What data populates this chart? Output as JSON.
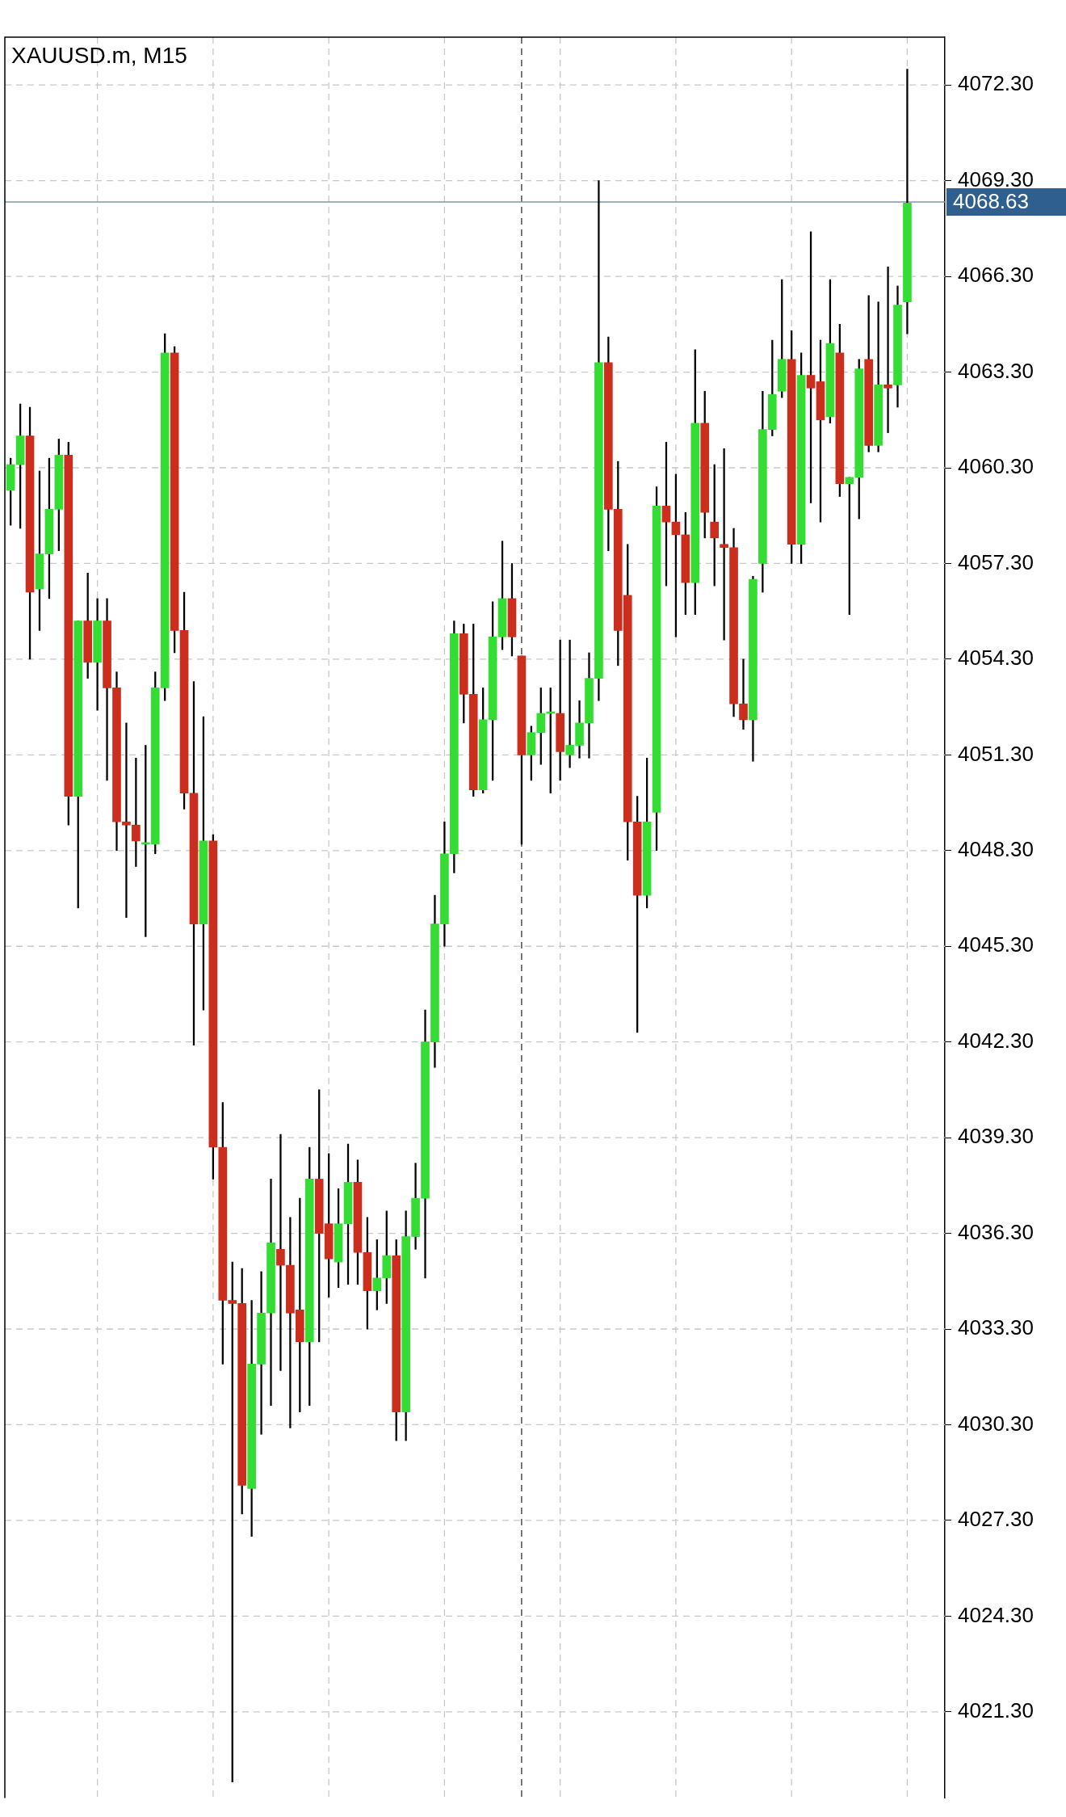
{
  "chart_data": {
    "type": "candlestick",
    "title": "XAUUSD.m, M15",
    "categories": [
      null,
      null,
      null,
      null,
      null,
      null,
      null,
      null,
      null,
      null,
      null,
      null,
      null,
      null,
      null,
      null,
      null,
      null,
      null,
      null,
      null,
      null,
      null,
      null,
      null,
      null,
      null,
      null,
      null,
      null,
      null,
      null,
      null,
      null,
      null,
      null,
      null,
      null,
      null,
      null,
      null,
      null,
      null,
      null,
      null,
      null,
      null,
      null,
      null,
      null,
      null,
      null,
      null,
      null,
      null,
      null,
      null,
      null,
      null,
      null,
      null,
      null,
      null,
      null,
      null,
      null,
      null,
      null,
      null,
      null,
      null,
      null,
      null,
      null,
      null,
      null,
      null,
      null,
      null,
      null,
      null,
      null,
      null,
      null,
      null,
      null,
      null,
      null,
      null,
      null,
      null,
      null,
      null,
      null
    ],
    "ohlc": [
      [
        4059.6,
        4060.6,
        4058.5,
        4060.4
      ],
      [
        4060.4,
        4062.3,
        4058.4,
        4061.3
      ],
      [
        4061.3,
        4062.2,
        4054.3,
        4056.4
      ],
      [
        4056.5,
        4060.2,
        4055.2,
        4057.6
      ],
      [
        4057.6,
        4060.6,
        4056.2,
        4059.0
      ],
      [
        4059.0,
        4061.2,
        4057.7,
        4060.7
      ],
      [
        4060.7,
        4061.1,
        4049.1,
        4050.0
      ],
      [
        4050.0,
        4055.5,
        4046.5,
        4055.5
      ],
      [
        4055.5,
        4057.0,
        4053.7,
        4054.2
      ],
      [
        4054.2,
        4056.2,
        4052.7,
        4055.5
      ],
      [
        4055.5,
        4056.2,
        4050.5,
        4053.4
      ],
      [
        4053.4,
        4053.9,
        4048.3,
        4049.2
      ],
      [
        4049.2,
        4052.3,
        4046.2,
        4049.1
      ],
      [
        4049.1,
        4051.2,
        4047.8,
        4048.6
      ],
      [
        4048.5,
        4051.6,
        4045.6,
        4048.5
      ],
      [
        4048.5,
        4053.9,
        4048.2,
        4053.4
      ],
      [
        4053.4,
        4064.5,
        4053.0,
        4063.9
      ],
      [
        4063.9,
        4064.1,
        4054.5,
        4055.2
      ],
      [
        4055.2,
        4056.4,
        4049.6,
        4050.1
      ],
      [
        4050.1,
        4053.6,
        4042.2,
        4046.0
      ],
      [
        4046.0,
        4052.5,
        4043.3,
        4048.6
      ],
      [
        4048.6,
        4048.8,
        4038.0,
        4039.0
      ],
      [
        4039.0,
        4040.4,
        4032.2,
        4034.2
      ],
      [
        4034.2,
        4035.4,
        4019.1,
        4034.1
      ],
      [
        4034.1,
        4035.2,
        4027.5,
        4028.4
      ],
      [
        4028.3,
        4034.2,
        4026.8,
        4032.2
      ],
      [
        4032.2,
        4035.1,
        4030.0,
        4033.8
      ],
      [
        4033.8,
        4038.0,
        4030.9,
        4036.0
      ],
      [
        4035.8,
        4039.4,
        4032.0,
        4035.3
      ],
      [
        4035.3,
        4036.8,
        4030.2,
        4033.8
      ],
      [
        4033.9,
        4037.4,
        4030.7,
        4032.9
      ],
      [
        4032.9,
        4039.0,
        4030.9,
        4038.0
      ],
      [
        4038.0,
        4040.8,
        4032.9,
        4036.3
      ],
      [
        4036.6,
        4038.8,
        4034.3,
        4035.5
      ],
      [
        4035.4,
        4037.7,
        4034.6,
        4036.6
      ],
      [
        4036.6,
        4039.1,
        4034.7,
        4037.9
      ],
      [
        4037.9,
        4038.6,
        4034.7,
        4035.7
      ],
      [
        4035.7,
        4036.8,
        4033.3,
        4034.5
      ],
      [
        4034.5,
        4036.1,
        4033.9,
        4034.9
      ],
      [
        4034.9,
        4037.0,
        4034.1,
        4035.6
      ],
      [
        4035.6,
        4036.1,
        4029.8,
        4030.7
      ],
      [
        4030.7,
        4037.0,
        4029.8,
        4036.2
      ],
      [
        4036.2,
        4038.5,
        4035.8,
        4037.4
      ],
      [
        4037.4,
        4043.3,
        4034.9,
        4042.3
      ],
      [
        4042.3,
        4046.9,
        4041.5,
        4046.0
      ],
      [
        4046.0,
        4049.2,
        4045.3,
        4048.2
      ],
      [
        4048.2,
        4055.5,
        4047.6,
        4055.1
      ],
      [
        4055.1,
        4055.4,
        4052.3,
        4053.2
      ],
      [
        4053.2,
        4055.4,
        4050.0,
        4050.2
      ],
      [
        4050.2,
        4053.4,
        4050.1,
        4052.4
      ],
      [
        4052.4,
        4056.1,
        4050.5,
        4055.0
      ],
      [
        4055.0,
        4058.0,
        4054.6,
        4056.2
      ],
      [
        4056.2,
        4057.3,
        4054.4,
        4055.0
      ],
      [
        4054.4,
        4054.4,
        4048.5,
        4051.3
      ],
      [
        4051.3,
        4052.2,
        4050.5,
        4052.0
      ],
      [
        4052.0,
        4053.4,
        4051.0,
        4052.6
      ],
      [
        4052.6,
        4053.4,
        4050.1,
        4052.6
      ],
      [
        4052.6,
        4054.9,
        4050.5,
        4051.4
      ],
      [
        4051.3,
        4054.9,
        4050.9,
        4051.6
      ],
      [
        4051.6,
        4053.0,
        4051.2,
        4052.3
      ],
      [
        4052.3,
        4054.5,
        4051.2,
        4053.7
      ],
      [
        4053.7,
        4069.3,
        4053.0,
        4063.6
      ],
      [
        4063.6,
        4064.4,
        4057.7,
        4059.0
      ],
      [
        4059.0,
        4060.5,
        4054.1,
        4055.2
      ],
      [
        4056.3,
        4057.9,
        4048.0,
        4049.2
      ],
      [
        4049.2,
        4050.0,
        4042.6,
        4046.9
      ],
      [
        4046.9,
        4051.2,
        4046.5,
        4049.2
      ],
      [
        4049.5,
        4059.7,
        4048.3,
        4059.1
      ],
      [
        4059.1,
        4061.1,
        4056.6,
        4058.6
      ],
      [
        4058.6,
        4060.1,
        4055.0,
        4058.2
      ],
      [
        4058.2,
        4058.9,
        4055.7,
        4056.7
      ],
      [
        4056.7,
        4064.0,
        4055.7,
        4061.7
      ],
      [
        4061.7,
        4062.7,
        4058.1,
        4058.9
      ],
      [
        4058.6,
        4060.4,
        4056.6,
        4058.1
      ],
      [
        4057.9,
        4060.9,
        4054.9,
        4057.8
      ],
      [
        4057.8,
        4058.4,
        4052.5,
        4052.9
      ],
      [
        4052.9,
        4054.3,
        4052.1,
        4052.4
      ],
      [
        4052.4,
        4056.9,
        4051.1,
        4056.8
      ],
      [
        4057.3,
        4062.7,
        4056.4,
        4061.5
      ],
      [
        4061.5,
        4064.3,
        4061.3,
        4062.6
      ],
      [
        4062.7,
        4066.2,
        4062.5,
        4063.7
      ],
      [
        4063.7,
        4064.6,
        4057.3,
        4057.9
      ],
      [
        4057.9,
        4063.9,
        4057.3,
        4063.2
      ],
      [
        4063.2,
        4067.7,
        4059.2,
        4062.8
      ],
      [
        4063.0,
        4064.3,
        4058.6,
        4061.8
      ],
      [
        4061.9,
        4066.2,
        4061.7,
        4064.2
      ],
      [
        4063.9,
        4064.8,
        4059.4,
        4059.8
      ],
      [
        4059.8,
        4060.0,
        4055.7,
        4060.0
      ],
      [
        4060.0,
        4063.7,
        4058.7,
        4063.4
      ],
      [
        4063.7,
        4065.7,
        4060.8,
        4061.0
      ],
      [
        4061.0,
        4065.5,
        4060.8,
        4062.9
      ],
      [
        4062.9,
        4066.6,
        4061.4,
        4062.8
      ],
      [
        4062.9,
        4066.0,
        4062.2,
        4065.4
      ],
      [
        4065.5,
        4072.8,
        4064.5,
        4068.6
      ]
    ],
    "colors": [
      "#33dd33",
      "#33dd33",
      "#cc2e1e",
      "#33dd33",
      "#33dd33",
      "#33dd33",
      "#cc2e1e",
      "#33dd33",
      "#cc2e1e",
      "#33dd33",
      "#cc2e1e",
      "#cc2e1e",
      "#cc2e1e",
      "#cc2e1e",
      "#33dd33",
      "#33dd33",
      "#33dd33",
      "#cc2e1e",
      "#cc2e1e",
      "#cc2e1e",
      "#33dd33",
      "#cc2e1e",
      "#cc2e1e",
      "#cc2e1e",
      "#cc2e1e",
      "#33dd33",
      "#33dd33",
      "#33dd33",
      "#cc2e1e",
      "#cc2e1e",
      "#cc2e1e",
      "#33dd33",
      "#cc2e1e",
      "#cc2e1e",
      "#33dd33",
      "#33dd33",
      "#cc2e1e",
      "#cc2e1e",
      "#33dd33",
      "#33dd33",
      "#cc2e1e",
      "#33dd33",
      "#33dd33",
      "#33dd33",
      "#33dd33",
      "#33dd33",
      "#33dd33",
      "#cc2e1e",
      "#cc2e1e",
      "#33dd33",
      "#33dd33",
      "#33dd33",
      "#cc2e1e",
      "#cc2e1e",
      "#33dd33",
      "#33dd33",
      "#33dd33",
      "#cc2e1e",
      "#33dd33",
      "#33dd33",
      "#33dd33",
      "#33dd33",
      "#cc2e1e",
      "#cc2e1e",
      "#cc2e1e",
      "#cc2e1e",
      "#33dd33",
      "#33dd33",
      "#cc2e1e",
      "#cc2e1e",
      "#cc2e1e",
      "#33dd33",
      "#cc2e1e",
      "#cc2e1e",
      "#cc2e1e",
      "#cc2e1e",
      "#cc2e1e",
      "#33dd33",
      "#33dd33",
      "#33dd33",
      "#33dd33",
      "#cc2e1e",
      "#33dd33",
      "#cc2e1e",
      "#cc2e1e",
      "#33dd33",
      "#cc2e1e",
      "#33dd33",
      "#33dd33",
      "#cc2e1e",
      "#33dd33",
      "#cc2e1e",
      "#33dd33",
      "#33dd33"
    ],
    "ylim": [
      4018.6,
      4073.8
    ],
    "yticks": [
      {
        "value": 4021.3,
        "label": "4021.30"
      },
      {
        "value": 4024.3,
        "label": "4024.30"
      },
      {
        "value": 4027.3,
        "label": "4027.30"
      },
      {
        "value": 4030.3,
        "label": "4030.30"
      },
      {
        "value": 4033.3,
        "label": "4033.30"
      },
      {
        "value": 4036.3,
        "label": "4036.30"
      },
      {
        "value": 4039.3,
        "label": "4039.30"
      },
      {
        "value": 4042.3,
        "label": "4042.30"
      },
      {
        "value": 4045.3,
        "label": "4045.30"
      },
      {
        "value": 4048.3,
        "label": "4048.30"
      },
      {
        "value": 4051.3,
        "label": "4051.30"
      },
      {
        "value": 4054.3,
        "label": "4054.30"
      },
      {
        "value": 4057.3,
        "label": "4057.30"
      },
      {
        "value": 4060.3,
        "label": "4060.30"
      },
      {
        "value": 4063.3,
        "label": "4063.30"
      },
      {
        "value": 4066.3,
        "label": "4066.30"
      },
      {
        "value": 4069.3,
        "label": "4069.30"
      },
      {
        "value": 4072.3,
        "label": "4072.30"
      }
    ],
    "ref_lines": [
      {
        "axis": "y",
        "value": 4068.63,
        "label": "4068.63",
        "color": "#7d98a6"
      }
    ],
    "grid": true,
    "legend": false
  }
}
